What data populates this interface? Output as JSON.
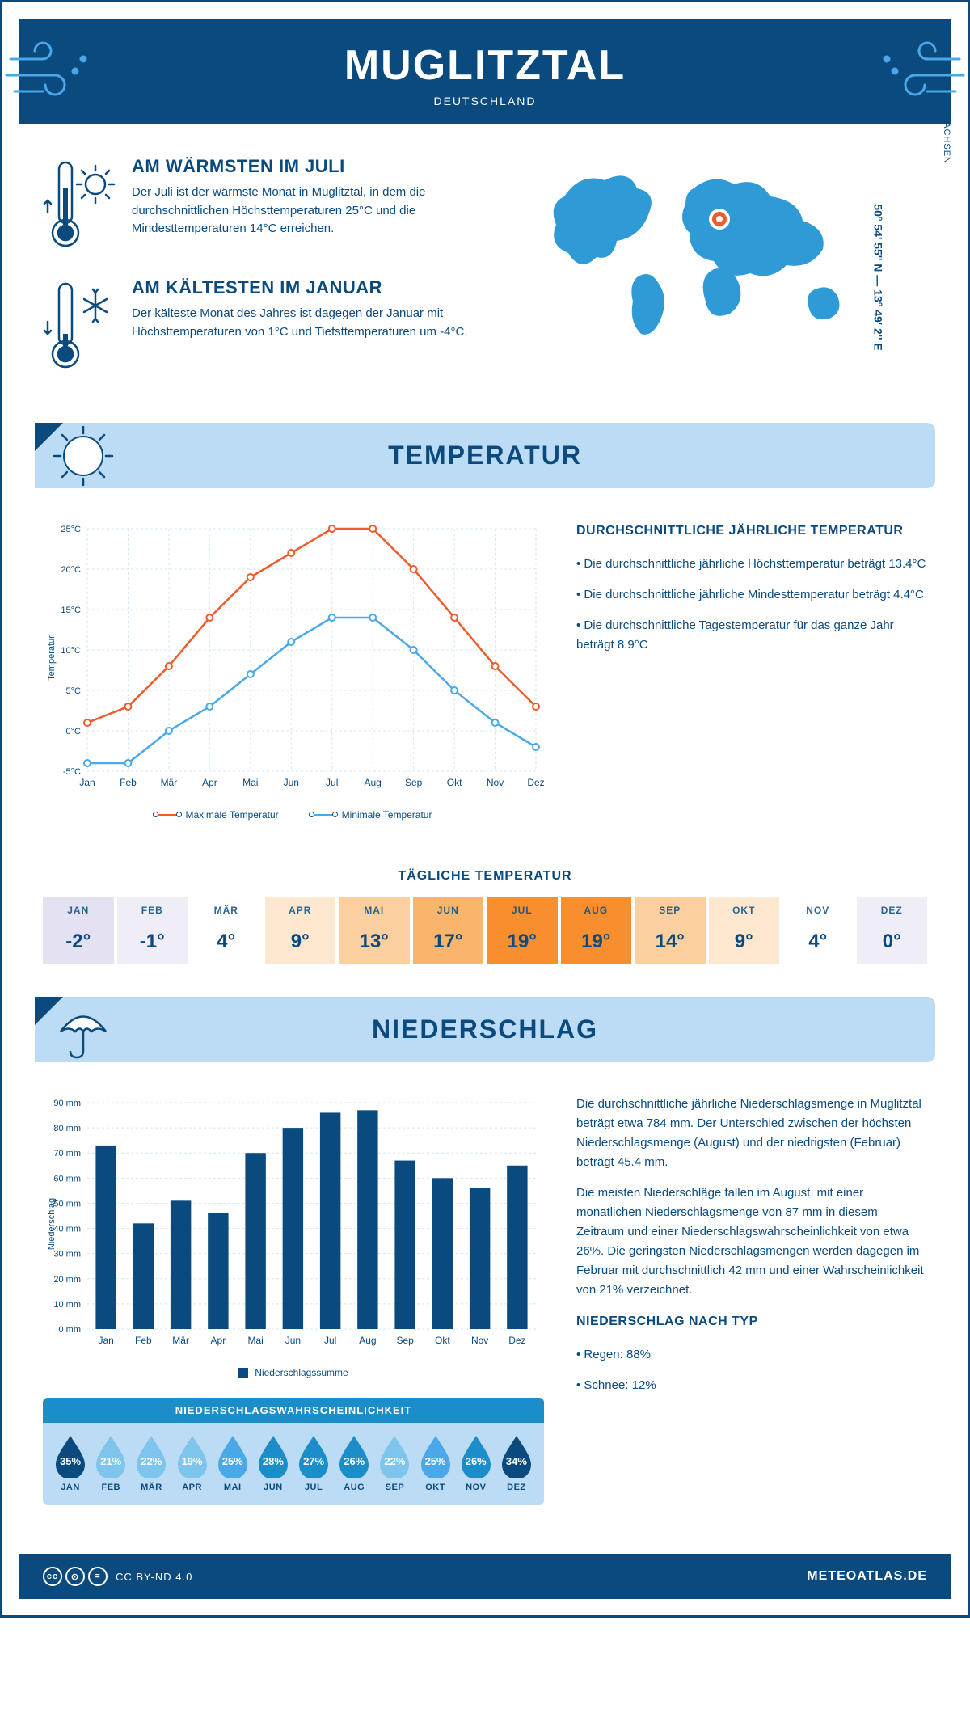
{
  "header": {
    "title": "MUGLITZTAL",
    "subtitle": "DEUTSCHLAND"
  },
  "coords": "50° 54' 55'' N — 13° 49' 2'' E",
  "region": "SACHSEN",
  "warmest": {
    "heading": "AM WÄRMSTEN IM JULI",
    "text": "Der Juli ist der wärmste Monat in Muglitztal, in dem die durchschnittlichen Höchsttemperaturen 25°C und die Mindesttemperaturen 14°C erreichen."
  },
  "coldest": {
    "heading": "AM KÄLTESTEN IM JANUAR",
    "text": "Der kälteste Monat des Jahres ist dagegen der Januar mit Höchsttemperaturen von 1°C und Tiefsttemperaturen um -4°C."
  },
  "temp_section": {
    "title": "TEMPERATUR"
  },
  "temp_chart": {
    "months": [
      "Jan",
      "Feb",
      "Mär",
      "Apr",
      "Mai",
      "Jun",
      "Jul",
      "Aug",
      "Sep",
      "Okt",
      "Nov",
      "Dez"
    ],
    "max": [
      1,
      3,
      8,
      14,
      19,
      22,
      25,
      25,
      20,
      14,
      8,
      3
    ],
    "min": [
      -4,
      -4,
      0,
      3,
      7,
      11,
      14,
      14,
      10,
      5,
      1,
      -2
    ],
    "max_color": "#f15a29",
    "min_color": "#4aa8e8",
    "ylabel": "Temperatur",
    "yticks": [
      -5,
      0,
      5,
      10,
      15,
      20,
      25
    ],
    "ytick_labels": [
      "-5°C",
      "0°C",
      "5°C",
      "10°C",
      "15°C",
      "20°C",
      "25°C"
    ],
    "legend_max": "Maximale Temperatur",
    "legend_min": "Minimale Temperatur",
    "grid_color": "#d5e6f5"
  },
  "temp_side": {
    "heading": "DURCHSCHNITTLICHE JÄHRLICHE TEMPERATUR",
    "b1": "• Die durchschnittliche jährliche Höchsttemperatur beträgt 13.4°C",
    "b2": "• Die durchschnittliche jährliche Mindesttemperatur beträgt 4.4°C",
    "b3": "• Die durchschnittliche Tagestemperatur für das ganze Jahr beträgt 8.9°C"
  },
  "daily": {
    "title": "TÄGLICHE TEMPERATUR",
    "months": [
      "JAN",
      "FEB",
      "MÄR",
      "APR",
      "MAI",
      "JUN",
      "JUL",
      "AUG",
      "SEP",
      "OKT",
      "NOV",
      "DEZ"
    ],
    "values": [
      "-2°",
      "-1°",
      "4°",
      "9°",
      "13°",
      "17°",
      "19°",
      "19°",
      "14°",
      "9°",
      "4°",
      "0°"
    ],
    "colors": [
      "#e3e1f2",
      "#efeef7",
      "#ffffff",
      "#fde7ce",
      "#fbcf9e",
      "#f9b56c",
      "#f88e2d",
      "#f88e2d",
      "#fbcf9e",
      "#fde7ce",
      "#ffffff",
      "#efeef7"
    ]
  },
  "precip_section": {
    "title": "NIEDERSCHLAG"
  },
  "precip_chart": {
    "months": [
      "Jan",
      "Feb",
      "Mär",
      "Apr",
      "Mai",
      "Jun",
      "Jul",
      "Aug",
      "Sep",
      "Okt",
      "Nov",
      "Dez"
    ],
    "values": [
      73,
      42,
      51,
      46,
      70,
      80,
      86,
      87,
      67,
      60,
      56,
      65
    ],
    "bar_color": "#0a4a7e",
    "ylabel": "Niederschlag",
    "yticks": [
      0,
      10,
      20,
      30,
      40,
      50,
      60,
      70,
      80,
      90
    ],
    "ytick_labels": [
      "0 mm",
      "10 mm",
      "20 mm",
      "30 mm",
      "40 mm",
      "50 mm",
      "60 mm",
      "70 mm",
      "80 mm",
      "90 mm"
    ],
    "legend": "Niederschlagssumme",
    "grid_color": "#d5e6f5"
  },
  "precip_text": {
    "p1": "Die durchschnittliche jährliche Niederschlagsmenge in Muglitztal beträgt etwa 784 mm. Der Unterschied zwischen der höchsten Niederschlagsmenge (August) und der niedrigsten (Februar) beträgt 45.4 mm.",
    "p2": "Die meisten Niederschläge fallen im August, mit einer monatlichen Niederschlagsmenge von 87 mm in diesem Zeitraum und einer Niederschlagswahrscheinlichkeit von etwa 26%. Die geringsten Niederschlagsmengen werden dagegen im Februar mit durchschnittlich 42 mm und einer Wahrscheinlichkeit von 21% verzeichnet.",
    "type_heading": "NIEDERSCHLAG NACH TYP",
    "rain": "• Regen: 88%",
    "snow": "• Schnee: 12%"
  },
  "prob": {
    "title": "NIEDERSCHLAGSWAHRSCHEINLICHKEIT",
    "months": [
      "JAN",
      "FEB",
      "MÄR",
      "APR",
      "MAI",
      "JUN",
      "JUL",
      "AUG",
      "SEP",
      "OKT",
      "NOV",
      "DEZ"
    ],
    "values": [
      "35%",
      "21%",
      "22%",
      "19%",
      "25%",
      "28%",
      "27%",
      "26%",
      "22%",
      "25%",
      "26%",
      "34%"
    ],
    "colors": [
      "#0a4a7e",
      "#7dc5ec",
      "#7dc5ec",
      "#7dc5ec",
      "#4aa8e8",
      "#1b8dc9",
      "#1b8dc9",
      "#1b8dc9",
      "#7dc5ec",
      "#4aa8e8",
      "#1b8dc9",
      "#0a4a7e"
    ]
  },
  "footer": {
    "license": "CC BY-ND 4.0",
    "site": "METEOATLAS.DE"
  }
}
